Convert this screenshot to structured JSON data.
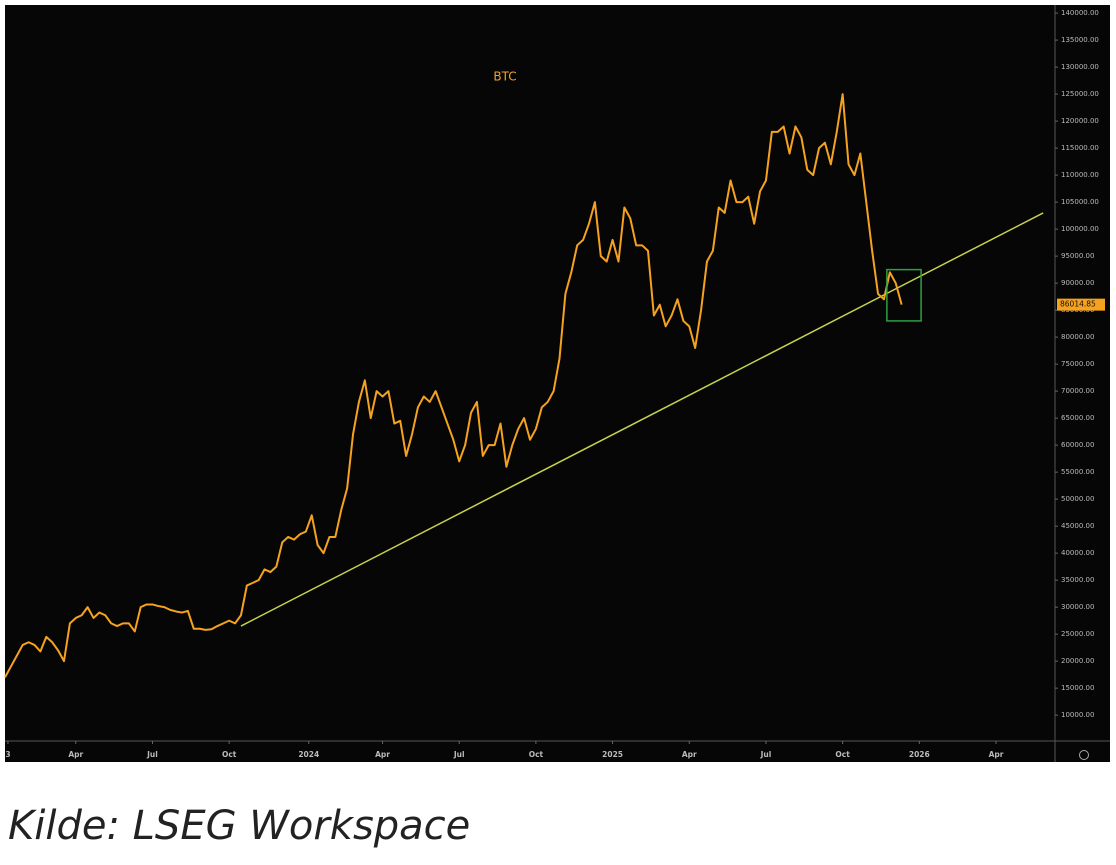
{
  "chart_data": {
    "type": "line",
    "series": [
      {
        "name": "BTC",
        "color": "#f5a21e",
        "values": [
          17000,
          19000,
          21000,
          23000,
          23500,
          23000,
          21800,
          24500,
          23500,
          22000,
          20000,
          27000,
          28000,
          28500,
          30000,
          28000,
          29000,
          28500,
          27000,
          26500,
          27000,
          27000,
          25500,
          30000,
          30500,
          30500,
          30200,
          30000,
          29500,
          29200,
          29000,
          29300,
          26000,
          26000,
          25800,
          25900,
          26500,
          27000,
          27500,
          27000,
          28500,
          34000,
          34500,
          35000,
          37000,
          36500,
          37500,
          42000,
          43000,
          42500,
          43500,
          44000,
          47000,
          41500,
          40000,
          43000,
          43000,
          48000,
          52000,
          62000,
          68000,
          72000,
          65000,
          70000,
          69000,
          70000,
          64000,
          64500,
          58000,
          62000,
          67000,
          69000,
          68000,
          70000,
          67000,
          64000,
          61000,
          57000,
          60000,
          66000,
          68000,
          58000,
          60000,
          60000,
          64000,
          56000,
          60000,
          63000,
          65000,
          61000,
          63000,
          67000,
          68000,
          70000,
          76000,
          88000,
          92000,
          97000,
          98000,
          101000,
          105000,
          95000,
          94000,
          98000,
          94000,
          104000,
          102000,
          97000,
          97000,
          96000,
          84000,
          86000,
          82000,
          84000,
          87000,
          83000,
          82000,
          78000,
          85000,
          94000,
          96000,
          104000,
          103000,
          109000,
          105000,
          105000,
          106000,
          101000,
          107000,
          109000,
          118000,
          118000,
          119000,
          114000,
          119000,
          117000,
          111000,
          110000,
          115000,
          116000,
          112000,
          118000,
          125000,
          112000,
          110000,
          114000,
          105000,
          96000,
          88000,
          87000,
          92000,
          90000,
          86014.85
        ]
      }
    ],
    "xlim": [
      0,
      178
    ],
    "xticks": [
      {
        "value": 0.5,
        "label": "3"
      },
      {
        "value": 12,
        "label": "Apr"
      },
      {
        "value": 25,
        "label": "Jul"
      },
      {
        "value": 38,
        "label": "Oct"
      },
      {
        "value": 51.5,
        "label": "2024"
      },
      {
        "value": 64,
        "label": "Apr"
      },
      {
        "value": 77,
        "label": "Jul"
      },
      {
        "value": 90,
        "label": "Oct"
      },
      {
        "value": 103,
        "label": "2025"
      },
      {
        "value": 116,
        "label": "Apr"
      },
      {
        "value": 129,
        "label": "Jul"
      },
      {
        "value": 142,
        "label": "Oct"
      },
      {
        "value": 155,
        "label": "2026"
      },
      {
        "value": 168,
        "label": "Apr"
      }
    ],
    "ylim": [
      5400,
      141500
    ],
    "yticks": [
      {
        "value": 10000,
        "label": "10000.00"
      },
      {
        "value": 15000,
        "label": "15000.00"
      },
      {
        "value": 20000,
        "label": "20000.00"
      },
      {
        "value": 25000,
        "label": "25000.00"
      },
      {
        "value": 30000,
        "label": "30000.00"
      },
      {
        "value": 35000,
        "label": "35000.00"
      },
      {
        "value": 40000,
        "label": "40000.00"
      },
      {
        "value": 45000,
        "label": "45000.00"
      },
      {
        "value": 50000,
        "label": "50000.00"
      },
      {
        "value": 55000,
        "label": "55000.00"
      },
      {
        "value": 60000,
        "label": "60000.00"
      },
      {
        "value": 65000,
        "label": "65000.00"
      },
      {
        "value": 70000,
        "label": "70000.00"
      },
      {
        "value": 75000,
        "label": "75000.00"
      },
      {
        "value": 80000,
        "label": "80000.00"
      },
      {
        "value": 85000,
        "label": "85000.00"
      },
      {
        "value": 90000,
        "label": "90000.00"
      },
      {
        "value": 95000,
        "label": "95000.00"
      },
      {
        "value": 100000,
        "label": "100000.00"
      },
      {
        "value": 105000,
        "label": "105000.00"
      },
      {
        "value": 110000,
        "label": "110000.00"
      },
      {
        "value": 115000,
        "label": "115000.00"
      },
      {
        "value": 120000,
        "label": "120000.00"
      },
      {
        "value": 125000,
        "label": "125000.00"
      },
      {
        "value": 130000,
        "label": "130000.00"
      },
      {
        "value": 135000,
        "label": "135000.00"
      },
      {
        "value": 140000,
        "label": "140000.00"
      }
    ],
    "grid": false,
    "trend_line": {
      "x": [
        40,
        176
      ],
      "values": [
        26500,
        103000
      ],
      "color": "#c8d24a"
    },
    "highlight": {
      "xlim": [
        149.5,
        155.3
      ],
      "ylim": [
        83000,
        92500
      ],
      "color": "#2ea043"
    }
  },
  "caption": "Kilde: LSEG Workspace"
}
